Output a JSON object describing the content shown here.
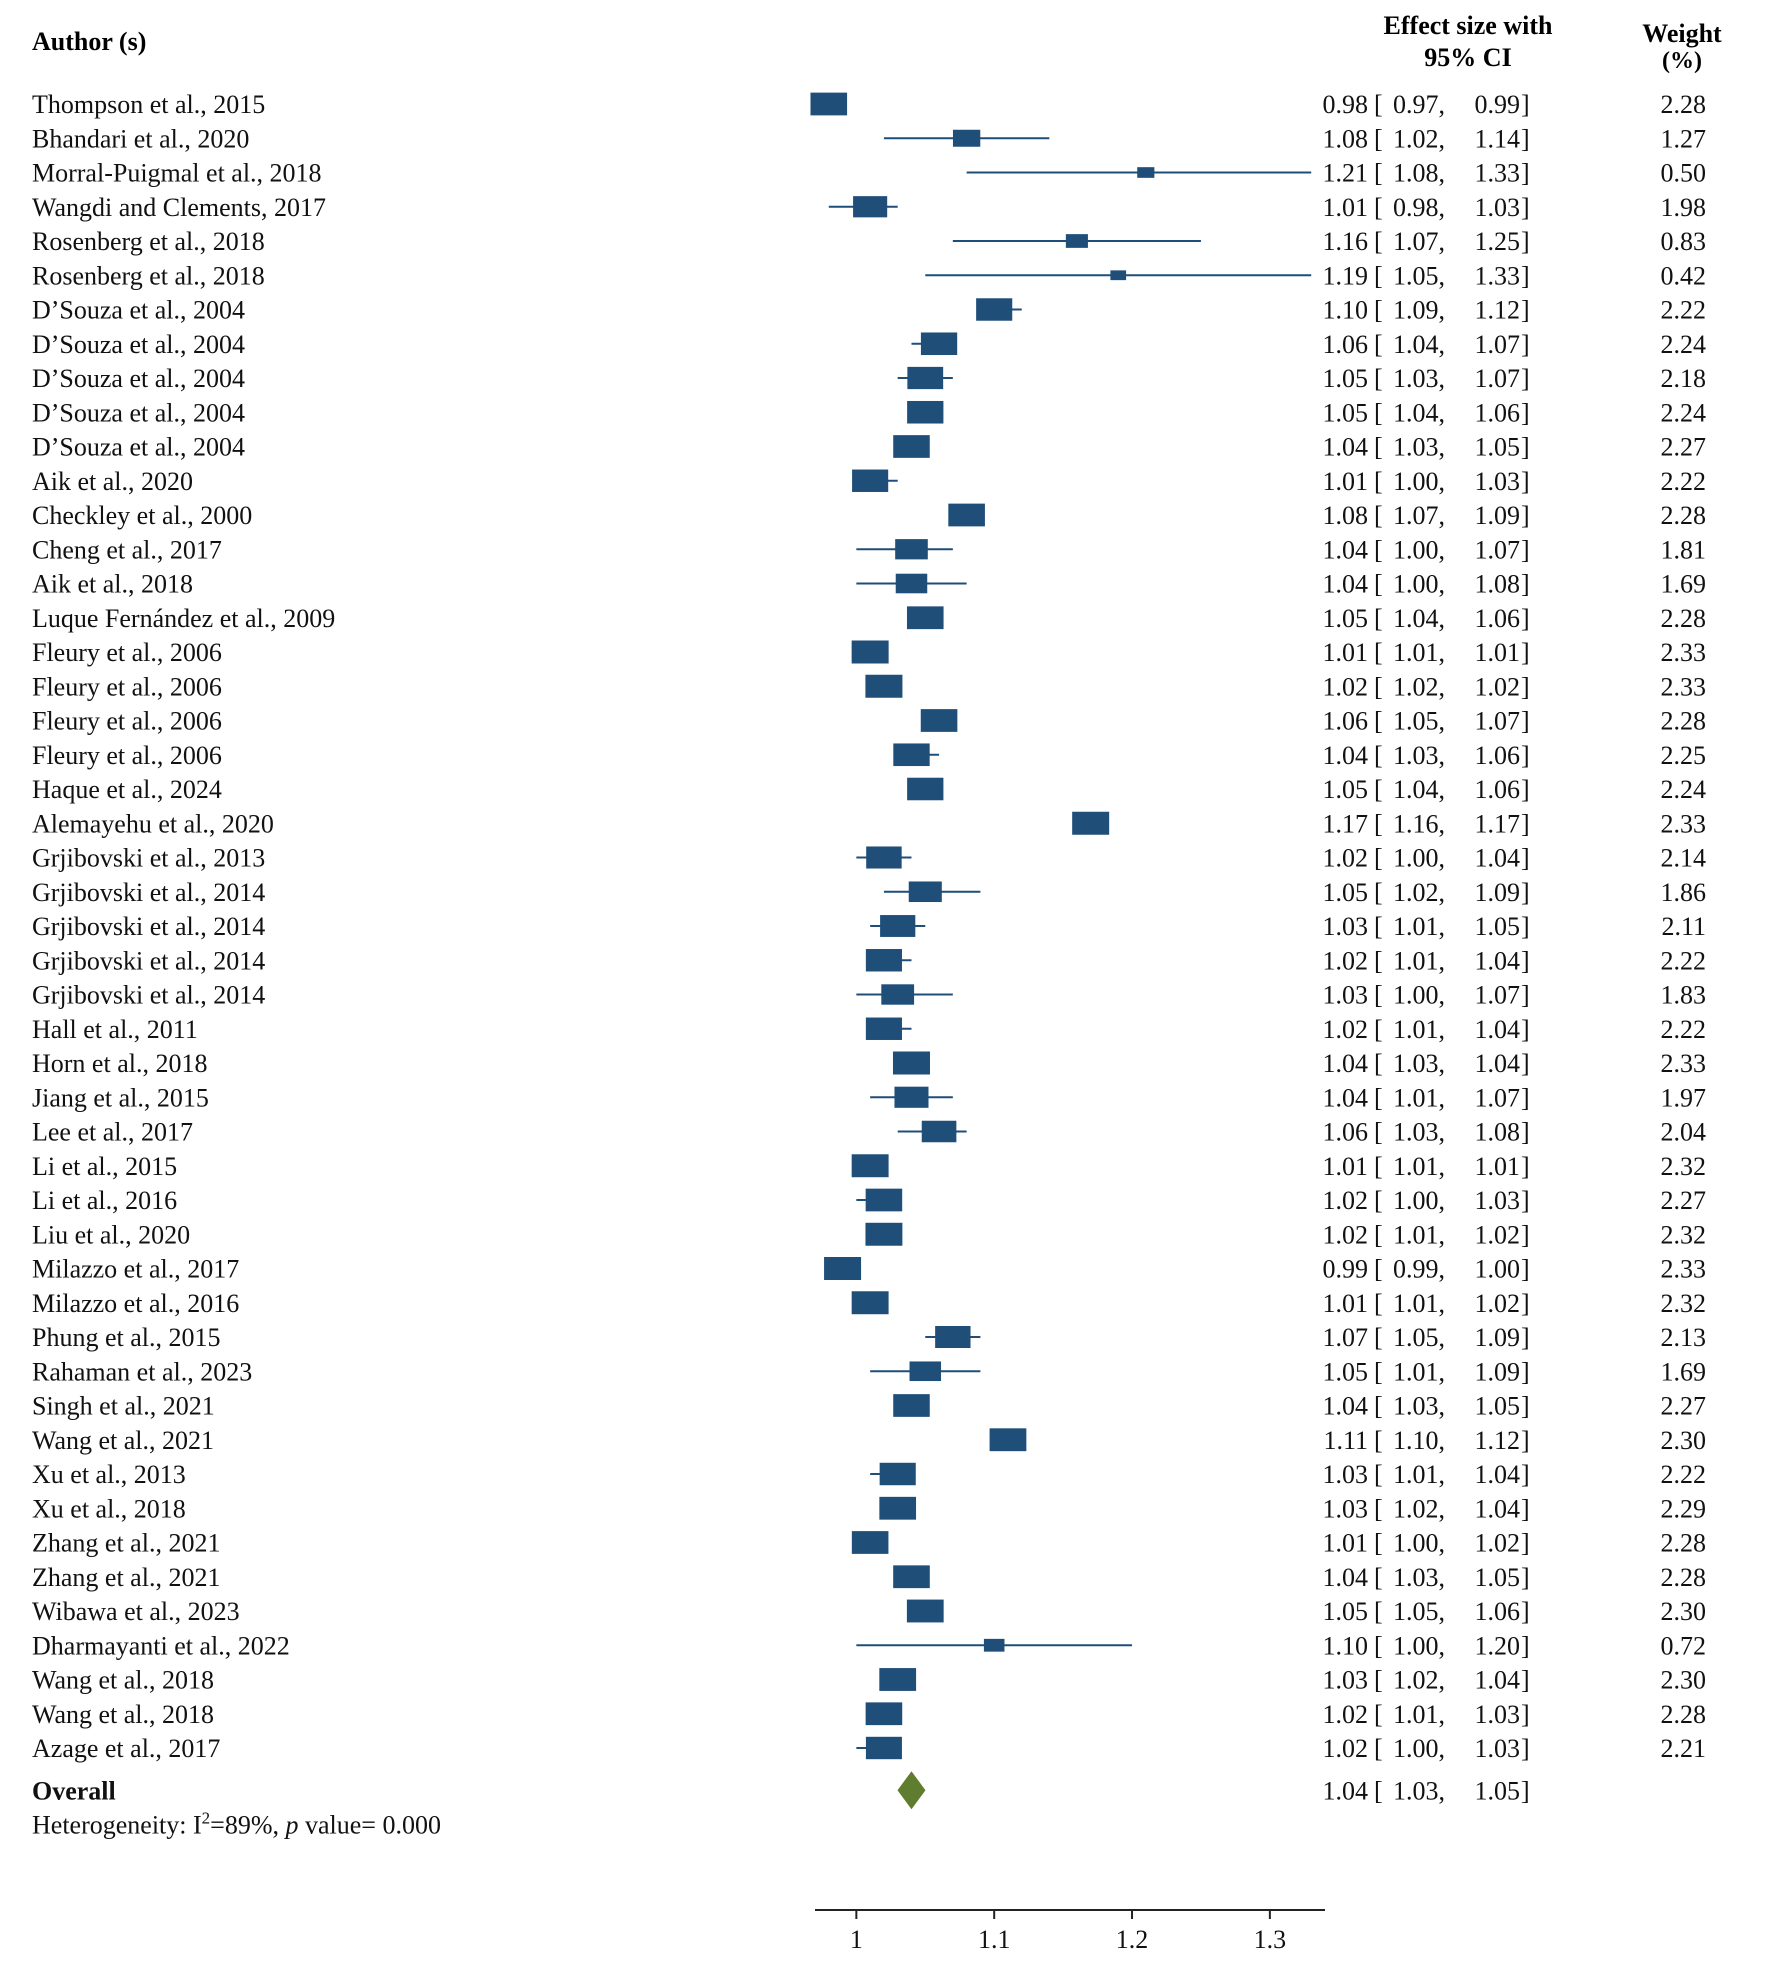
{
  "headers": {
    "author": "Author (s)",
    "effect_line1": "Effect size with",
    "effect_line2": "95% CI",
    "weight_line1": "Weight",
    "weight_line2": "(%)"
  },
  "colors": {
    "box": "#1f4e79",
    "diamond": "#5e7d2e",
    "text": "#111111"
  },
  "chart_data": {
    "type": "forest",
    "xlim": [
      0.97,
      1.34
    ],
    "xticks": [
      1,
      1.1,
      1.2,
      1.3
    ],
    "xtick_labels": [
      "1",
      "1.1",
      "1.2",
      "1.3"
    ],
    "studies": [
      {
        "author": "Thompson et al., 2015",
        "es": 0.98,
        "lo": 0.97,
        "hi": 0.99,
        "weight": 2.28
      },
      {
        "author": "Bhandari et al., 2020",
        "es": 1.08,
        "lo": 1.02,
        "hi": 1.14,
        "weight": 1.27
      },
      {
        "author": "Morral-Puigmal et al., 2018",
        "es": 1.21,
        "lo": 1.08,
        "hi": 1.33,
        "weight": 0.5
      },
      {
        "author": "Wangdi and Clements, 2017",
        "es": 1.01,
        "lo": 0.98,
        "hi": 1.03,
        "weight": 1.98
      },
      {
        "author": "Rosenberg et al., 2018",
        "es": 1.16,
        "lo": 1.07,
        "hi": 1.25,
        "weight": 0.83
      },
      {
        "author": "Rosenberg et al., 2018",
        "es": 1.19,
        "lo": 1.05,
        "hi": 1.33,
        "weight": 0.42
      },
      {
        "author": "D’Souza et al., 2004",
        "es": 1.1,
        "lo": 1.09,
        "hi": 1.12,
        "weight": 2.22
      },
      {
        "author": "D’Souza et al., 2004",
        "es": 1.06,
        "lo": 1.04,
        "hi": 1.07,
        "weight": 2.24
      },
      {
        "author": "D’Souza et al., 2004",
        "es": 1.05,
        "lo": 1.03,
        "hi": 1.07,
        "weight": 2.18
      },
      {
        "author": "D’Souza et al., 2004",
        "es": 1.05,
        "lo": 1.04,
        "hi": 1.06,
        "weight": 2.24
      },
      {
        "author": "D’Souza et al., 2004",
        "es": 1.04,
        "lo": 1.03,
        "hi": 1.05,
        "weight": 2.27
      },
      {
        "author": "Aik et al., 2020",
        "es": 1.01,
        "lo": 1.0,
        "hi": 1.03,
        "weight": 2.22
      },
      {
        "author": "Checkley et al., 2000",
        "es": 1.08,
        "lo": 1.07,
        "hi": 1.09,
        "weight": 2.28
      },
      {
        "author": "Cheng et al., 2017",
        "es": 1.04,
        "lo": 1.0,
        "hi": 1.07,
        "weight": 1.81
      },
      {
        "author": "Aik et al., 2018",
        "es": 1.04,
        "lo": 1.0,
        "hi": 1.08,
        "weight": 1.69
      },
      {
        "author": "Luque Fernández et al., 2009",
        "es": 1.05,
        "lo": 1.04,
        "hi": 1.06,
        "weight": 2.28
      },
      {
        "author": "Fleury et al., 2006",
        "es": 1.01,
        "lo": 1.01,
        "hi": 1.01,
        "weight": 2.33
      },
      {
        "author": "Fleury et al., 2006",
        "es": 1.02,
        "lo": 1.02,
        "hi": 1.02,
        "weight": 2.33
      },
      {
        "author": "Fleury et al., 2006",
        "es": 1.06,
        "lo": 1.05,
        "hi": 1.07,
        "weight": 2.28
      },
      {
        "author": "Fleury et al., 2006",
        "es": 1.04,
        "lo": 1.03,
        "hi": 1.06,
        "weight": 2.25
      },
      {
        "author": "Haque et al., 2024",
        "es": 1.05,
        "lo": 1.04,
        "hi": 1.06,
        "weight": 2.24
      },
      {
        "author": "Alemayehu et al., 2020",
        "es": 1.17,
        "lo": 1.16,
        "hi": 1.17,
        "weight": 2.33
      },
      {
        "author": "Grjibovski et al., 2013",
        "es": 1.02,
        "lo": 1.0,
        "hi": 1.04,
        "weight": 2.14
      },
      {
        "author": "Grjibovski et al., 2014",
        "es": 1.05,
        "lo": 1.02,
        "hi": 1.09,
        "weight": 1.86
      },
      {
        "author": "Grjibovski et al., 2014",
        "es": 1.03,
        "lo": 1.01,
        "hi": 1.05,
        "weight": 2.11
      },
      {
        "author": "Grjibovski et al., 2014",
        "es": 1.02,
        "lo": 1.01,
        "hi": 1.04,
        "weight": 2.22
      },
      {
        "author": "Grjibovski et al., 2014",
        "es": 1.03,
        "lo": 1.0,
        "hi": 1.07,
        "weight": 1.83
      },
      {
        "author": "Hall et al., 2011",
        "es": 1.02,
        "lo": 1.01,
        "hi": 1.04,
        "weight": 2.22
      },
      {
        "author": "Horn et al., 2018",
        "es": 1.04,
        "lo": 1.03,
        "hi": 1.04,
        "weight": 2.33
      },
      {
        "author": "Jiang et al., 2015",
        "es": 1.04,
        "lo": 1.01,
        "hi": 1.07,
        "weight": 1.97
      },
      {
        "author": "Lee et al., 2017",
        "es": 1.06,
        "lo": 1.03,
        "hi": 1.08,
        "weight": 2.04
      },
      {
        "author": "Li et al., 2015",
        "es": 1.01,
        "lo": 1.01,
        "hi": 1.01,
        "weight": 2.32
      },
      {
        "author": "Li et al., 2016",
        "es": 1.02,
        "lo": 1.0,
        "hi": 1.03,
        "weight": 2.27
      },
      {
        "author": "Liu et al., 2020",
        "es": 1.02,
        "lo": 1.01,
        "hi": 1.02,
        "weight": 2.32
      },
      {
        "author": "Milazzo et al., 2017",
        "es": 0.99,
        "lo": 0.99,
        "hi": 1.0,
        "weight": 2.33
      },
      {
        "author": "Milazzo et al., 2016",
        "es": 1.01,
        "lo": 1.01,
        "hi": 1.02,
        "weight": 2.32
      },
      {
        "author": "Phung et al., 2015",
        "es": 1.07,
        "lo": 1.05,
        "hi": 1.09,
        "weight": 2.13
      },
      {
        "author": "Rahaman et al., 2023",
        "es": 1.05,
        "lo": 1.01,
        "hi": 1.09,
        "weight": 1.69
      },
      {
        "author": "Singh et al., 2021",
        "es": 1.04,
        "lo": 1.03,
        "hi": 1.05,
        "weight": 2.27
      },
      {
        "author": "Wang et al., 2021",
        "es": 1.11,
        "lo": 1.1,
        "hi": 1.12,
        "weight": 2.3
      },
      {
        "author": "Xu et al., 2013",
        "es": 1.03,
        "lo": 1.01,
        "hi": 1.04,
        "weight": 2.22
      },
      {
        "author": "Xu et al., 2018",
        "es": 1.03,
        "lo": 1.02,
        "hi": 1.04,
        "weight": 2.29
      },
      {
        "author": "Zhang et al., 2021",
        "es": 1.01,
        "lo": 1.0,
        "hi": 1.02,
        "weight": 2.28
      },
      {
        "author": "Zhang et al., 2021",
        "es": 1.04,
        "lo": 1.03,
        "hi": 1.05,
        "weight": 2.28
      },
      {
        "author": "Wibawa et al., 2023",
        "es": 1.05,
        "lo": 1.05,
        "hi": 1.06,
        "weight": 2.3
      },
      {
        "author": "Dharmayanti et al., 2022",
        "es": 1.1,
        "lo": 1.0,
        "hi": 1.2,
        "weight": 0.72
      },
      {
        "author": "Wang et al., 2018",
        "es": 1.03,
        "lo": 1.02,
        "hi": 1.04,
        "weight": 2.3
      },
      {
        "author": "Wang et al., 2018",
        "es": 1.02,
        "lo": 1.01,
        "hi": 1.03,
        "weight": 2.28
      },
      {
        "author": "Azage et al., 2017",
        "es": 1.02,
        "lo": 1.0,
        "hi": 1.03,
        "weight": 2.21
      }
    ],
    "overall": {
      "label": "Overall",
      "es": 1.04,
      "lo": 1.03,
      "hi": 1.05
    },
    "heterogeneity": {
      "prefix": "Heterogeneity: I",
      "sup": "2",
      "mid": "=89%, ",
      "p": "p",
      "suffix": " value= 0.000"
    }
  }
}
